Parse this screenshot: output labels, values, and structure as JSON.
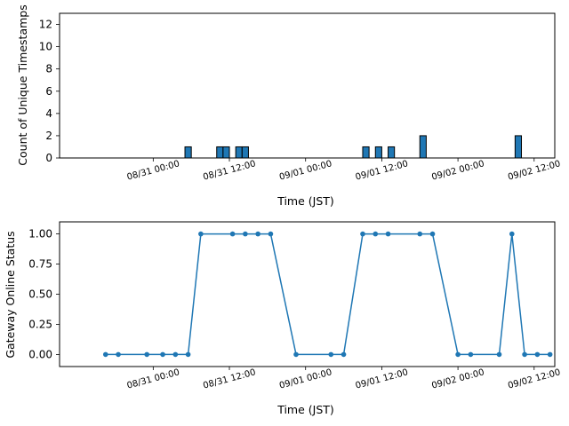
{
  "chart_data": [
    {
      "type": "bar",
      "title": "",
      "xlabel": "Time (JST)",
      "ylabel": "Count of Unique Timestamps",
      "xlim": [
        "2025-08-30 09:15",
        "2025-09-02 15:15"
      ],
      "ylim": [
        0,
        13
      ],
      "yticks": [
        0,
        2,
        4,
        6,
        8,
        10,
        12
      ],
      "xticks": [
        "08/31 00:00",
        "08/31 12:00",
        "09/01 00:00",
        "09/01 12:00",
        "09/02 00:00",
        "09/02 12:00"
      ],
      "grid": false,
      "bar_color": "#1f77b4",
      "edge_color": "#000000",
      "bin_width_hours": 1,
      "bars": [
        {
          "start": "2025-08-31 05:00",
          "value": 1
        },
        {
          "start": "2025-08-31 10:00",
          "value": 1
        },
        {
          "start": "2025-08-31 11:00",
          "value": 1
        },
        {
          "start": "2025-08-31 13:00",
          "value": 1
        },
        {
          "start": "2025-08-31 14:00",
          "value": 1
        },
        {
          "start": "2025-09-01 09:00",
          "value": 1
        },
        {
          "start": "2025-09-01 11:00",
          "value": 1
        },
        {
          "start": "2025-09-01 13:00",
          "value": 1
        },
        {
          "start": "2025-09-01 18:00",
          "value": 2
        },
        {
          "start": "2025-09-02 09:00",
          "value": 2
        }
      ]
    },
    {
      "type": "line",
      "title": "",
      "xlabel": "Time (JST)",
      "ylabel": "Gateway Online Status",
      "xlim": [
        "2025-08-30 09:15",
        "2025-09-02 15:15"
      ],
      "ylim": [
        -0.1,
        1.1
      ],
      "yticks": [
        "0.00",
        "0.25",
        "0.50",
        "0.75",
        "1.00"
      ],
      "xticks": [
        "08/31 00:00",
        "08/31 12:00",
        "09/01 00:00",
        "09/01 12:00",
        "09/02 00:00",
        "09/02 12:00"
      ],
      "grid": false,
      "line_color": "#1f77b4",
      "marker": "circle",
      "series": [
        {
          "x": [
            "2025-08-30 16:30",
            "2025-08-30 18:30",
            "2025-08-30 23:00",
            "2025-08-31 01:30",
            "2025-08-31 03:30",
            "2025-08-31 05:30",
            "2025-08-31 07:30",
            "2025-08-31 12:30",
            "2025-08-31 14:30",
            "2025-08-31 16:30",
            "2025-08-31 18:30",
            "2025-08-31 22:30",
            "2025-09-01 04:00",
            "2025-09-01 06:00",
            "2025-09-01 09:00",
            "2025-09-01 11:00",
            "2025-09-01 13:00",
            "2025-09-01 18:00",
            "2025-09-01 20:00",
            "2025-09-02 00:00",
            "2025-09-02 02:00",
            "2025-09-02 06:30",
            "2025-09-02 08:30",
            "2025-09-02 10:30",
            "2025-09-02 12:30",
            "2025-09-02 14:30"
          ],
          "values": [
            0,
            0,
            0,
            0,
            0,
            0,
            1,
            1,
            1,
            1,
            1,
            0,
            0,
            0,
            1,
            1,
            1,
            1,
            1,
            0,
            0,
            0,
            1,
            0,
            0,
            0
          ]
        }
      ]
    }
  ]
}
